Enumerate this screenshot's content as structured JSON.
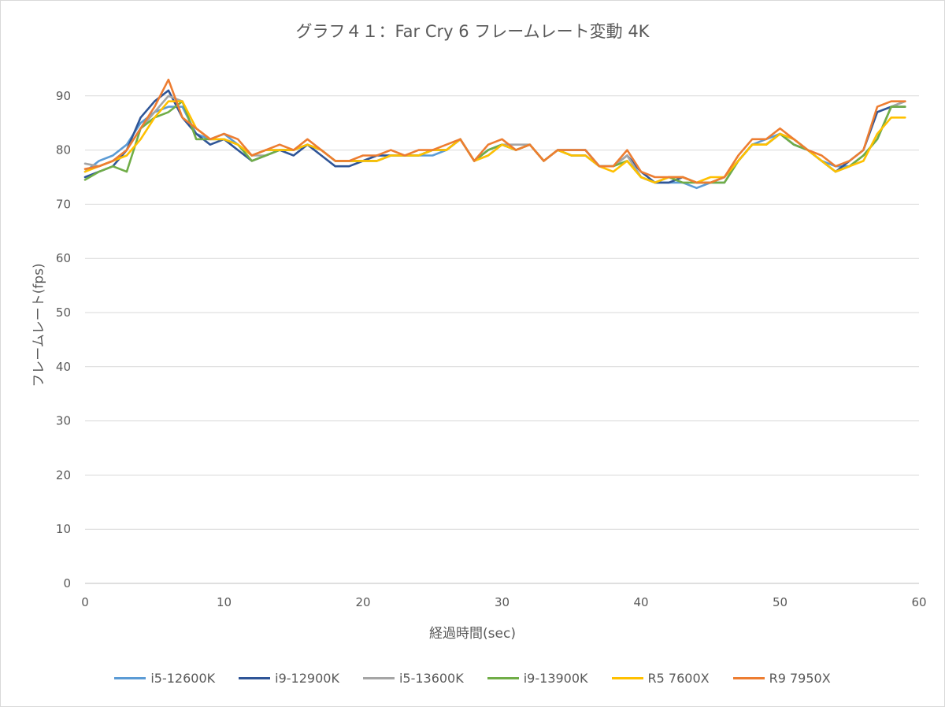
{
  "chart_data": {
    "type": "line",
    "title": "グラフ４１：Far Cry 6 フレームレート変動 4K",
    "xlabel": "経過時間(sec)",
    "ylabel": "フレームレート(fps)",
    "xlim": [
      0,
      60
    ],
    "ylim": [
      0,
      100
    ],
    "xticks": [
      0,
      10,
      20,
      30,
      40,
      50,
      60
    ],
    "yticks": [
      0,
      10,
      20,
      30,
      40,
      50,
      60,
      70,
      80,
      90
    ],
    "grid": "horizontal",
    "legend": "bottom",
    "x": [
      0,
      1,
      2,
      3,
      4,
      5,
      6,
      7,
      8,
      9,
      10,
      11,
      12,
      13,
      14,
      15,
      16,
      17,
      18,
      19,
      20,
      21,
      22,
      23,
      24,
      25,
      26,
      27,
      28,
      29,
      30,
      31,
      32,
      33,
      34,
      35,
      36,
      37,
      38,
      39,
      40,
      41,
      42,
      43,
      44,
      45,
      46,
      47,
      48,
      49,
      50,
      51,
      52,
      53,
      54,
      55,
      56,
      57,
      58,
      59
    ],
    "series": [
      {
        "name": "i5-12600K",
        "color": "#5b9bd5",
        "values": [
          76,
          78,
          79,
          81,
          85,
          87,
          88,
          88,
          83,
          82,
          83,
          81,
          79,
          80,
          80,
          80,
          81,
          80,
          78,
          78,
          78,
          79,
          79,
          79,
          79,
          79,
          80,
          82,
          78,
          80,
          81,
          80,
          81,
          78,
          80,
          79,
          79,
          77,
          77,
          79,
          75,
          74,
          74,
          74,
          73,
          74,
          74,
          78,
          81,
          82,
          83,
          82,
          80,
          78,
          77,
          77,
          79,
          82,
          88,
          89
        ]
      },
      {
        "name": "i9-12900K",
        "color": "#2f5597",
        "values": [
          75,
          76,
          77,
          80,
          86,
          89,
          91,
          86,
          83,
          81,
          82,
          80,
          78,
          79,
          80,
          79,
          81,
          79,
          77,
          77,
          78,
          79,
          79,
          79,
          79,
          80,
          80,
          82,
          78,
          80,
          81,
          80,
          81,
          78,
          80,
          80,
          80,
          77,
          77,
          79,
          76,
          74,
          74,
          75,
          74,
          74,
          75,
          78,
          81,
          81,
          83,
          81,
          80,
          78,
          76,
          78,
          80,
          87,
          88,
          88
        ]
      },
      {
        "name": "i5-13600K",
        "color": "#a5a5a5",
        "values": [
          77.5,
          77,
          78,
          80,
          84,
          87,
          90,
          89,
          82,
          82,
          82,
          81,
          79,
          79,
          80,
          80,
          81,
          80,
          78,
          78,
          78,
          78,
          79,
          79,
          79,
          80,
          80,
          82,
          78,
          79,
          81,
          81,
          81,
          78,
          80,
          79,
          79,
          77,
          77,
          79,
          75,
          74,
          75,
          75,
          74,
          74,
          75,
          78,
          81,
          81,
          83,
          82,
          80,
          78,
          76,
          77,
          79,
          82,
          88,
          89
        ]
      },
      {
        "name": "i9-13900K",
        "color": "#70ad47",
        "values": [
          74.5,
          76,
          77,
          76,
          84,
          86,
          87,
          89,
          82,
          82,
          82,
          81,
          78,
          79,
          80,
          80,
          81,
          80,
          78,
          78,
          78,
          78,
          79,
          79,
          79,
          80,
          80,
          82,
          78,
          80,
          81,
          80,
          81,
          78,
          80,
          79,
          79,
          77,
          77,
          78,
          75,
          74,
          75,
          74,
          74,
          74,
          74,
          78,
          81,
          81,
          83,
          81,
          80,
          78,
          76,
          77,
          79,
          82,
          88,
          88
        ]
      },
      {
        "name": "R5 7600X",
        "color": "#ffc000",
        "values": [
          76,
          77,
          78,
          79,
          82,
          86,
          89,
          89,
          84,
          82,
          82,
          81,
          79,
          80,
          80,
          80,
          81,
          80,
          78,
          78,
          78,
          78,
          79,
          79,
          79,
          80,
          80,
          82,
          78,
          79,
          81,
          80,
          81,
          78,
          80,
          79,
          79,
          77,
          76,
          78,
          75,
          74,
          75,
          75,
          74,
          75,
          75,
          78,
          81,
          81,
          83,
          82,
          80,
          78,
          76,
          77,
          78,
          83,
          86,
          86
        ]
      },
      {
        "name": "R9 7950X",
        "color": "#ed7d31",
        "values": [
          76.5,
          77,
          78,
          80,
          84,
          88,
          93,
          86,
          84,
          82,
          83,
          82,
          79,
          80,
          81,
          80,
          82,
          80,
          78,
          78,
          79,
          79,
          80,
          79,
          80,
          80,
          81,
          82,
          78,
          81,
          82,
          80,
          81,
          78,
          80,
          80,
          80,
          77,
          77,
          80,
          76,
          75,
          75,
          75,
          74,
          74,
          75,
          79,
          82,
          82,
          84,
          82,
          80,
          79,
          77,
          78,
          80,
          88,
          89,
          89
        ]
      }
    ]
  }
}
